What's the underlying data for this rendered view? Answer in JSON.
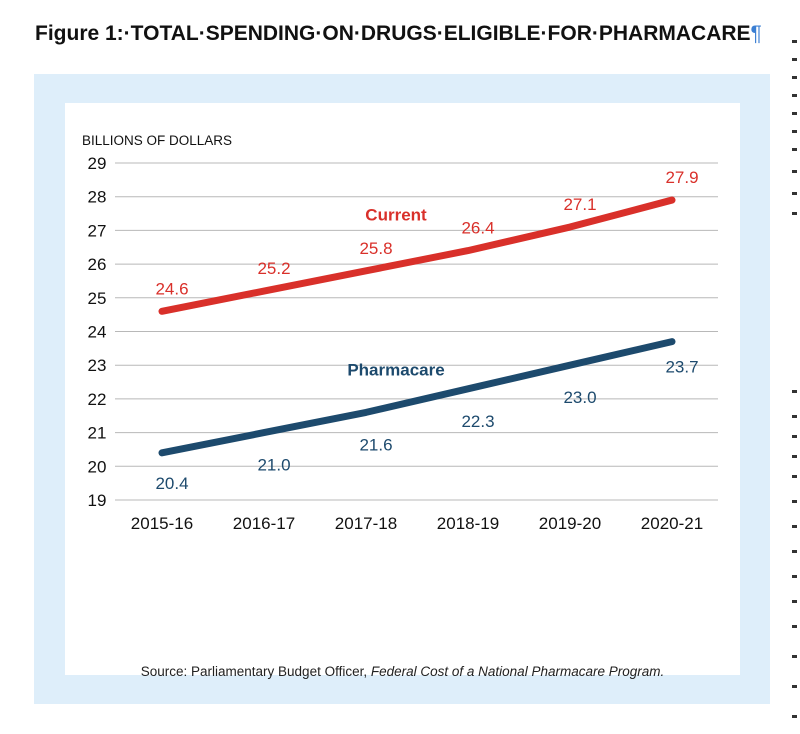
{
  "figure": {
    "title": "Figure 1:·TOTAL·SPENDING·ON·DRUGS·ELIGIBLE·FOR·PHARMACARE",
    "pilcrow": "¶"
  },
  "source": {
    "prefix": "Source: Parliamentary Budget Officer, ",
    "publication": "Federal Cost of a National Pharmacare Program."
  },
  "colors": {
    "current": "#d9302a",
    "pharmacare": "#1d4a6d",
    "grid": "#b8b8b8",
    "panel": "#deeefa"
  },
  "chart_data": {
    "type": "line",
    "ylabel": "BILLIONS OF DOLLARS",
    "categories": [
      "2015-16",
      "2016-17",
      "2017-18",
      "2018-19",
      "2019-20",
      "2020-21"
    ],
    "ylim": [
      19,
      29
    ],
    "yticks": [
      19,
      20,
      21,
      22,
      23,
      24,
      25,
      26,
      27,
      28,
      29
    ],
    "grid": true,
    "series": [
      {
        "name": "Current",
        "values": [
          24.6,
          25.2,
          25.8,
          26.4,
          27.1,
          27.9
        ]
      },
      {
        "name": "Pharmacare",
        "values": [
          20.4,
          21.0,
          21.6,
          22.3,
          23.0,
          23.7
        ]
      }
    ]
  }
}
